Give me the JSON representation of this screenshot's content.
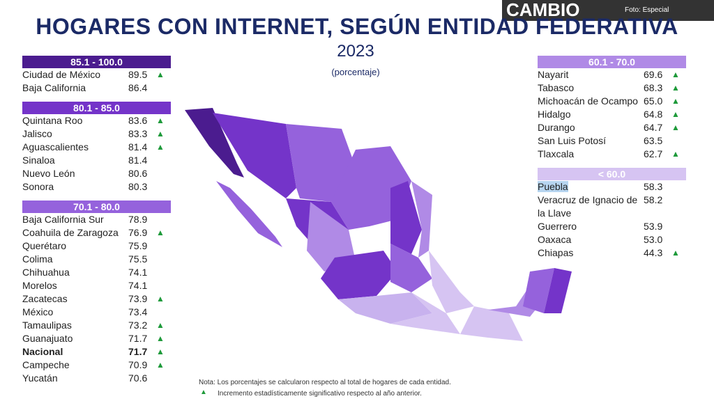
{
  "title": "HOGARES CON INTERNET, SEGÚN ENTIDAD FEDERATIVA",
  "year": "2023",
  "subtitle": "(porcentaje)",
  "watermark": {
    "brand": "CAMBIO",
    "credit": "Foto: Especial"
  },
  "columns": [
    {
      "groups": [
        {
          "header": "85.1 - 100.0",
          "color": "#4b1c8f",
          "text_color": "#ffffff",
          "rows": [
            {
              "name": "Ciudad de México",
              "value": "89.5",
              "up": true
            },
            {
              "name": "Baja California",
              "value": "86.4",
              "up": false
            }
          ]
        },
        {
          "header": "80.1 - 85.0",
          "color": "#7434c9",
          "text_color": "#ffffff",
          "rows": [
            {
              "name": "Quintana Roo",
              "value": "83.6",
              "up": true
            },
            {
              "name": "Jalisco",
              "value": "83.3",
              "up": true
            },
            {
              "name": "Aguascalientes",
              "value": "81.4",
              "up": true
            },
            {
              "name": "Sinaloa",
              "value": "81.4",
              "up": false
            },
            {
              "name": "Nuevo León",
              "value": "80.6",
              "up": false
            },
            {
              "name": "Sonora",
              "value": "80.3",
              "up": false
            }
          ]
        },
        {
          "header": "70.1 - 80.0",
          "color": "#9562dc",
          "text_color": "#ffffff",
          "rows": [
            {
              "name": "Baja California Sur",
              "value": "78.9",
              "up": false
            },
            {
              "name": "Coahuila de Zaragoza",
              "value": "76.9",
              "up": true
            },
            {
              "name": "Querétaro",
              "value": "75.9",
              "up": false
            },
            {
              "name": "Colima",
              "value": "75.5",
              "up": false
            },
            {
              "name": "Chihuahua",
              "value": "74.1",
              "up": false
            },
            {
              "name": "Morelos",
              "value": "74.1",
              "up": false
            },
            {
              "name": "Zacatecas",
              "value": "73.9",
              "up": true
            },
            {
              "name": "México",
              "value": "73.4",
              "up": false
            },
            {
              "name": "Tamaulipas",
              "value": "73.2",
              "up": true
            },
            {
              "name": "Guanajuato",
              "value": "71.7",
              "up": true
            },
            {
              "name": "Nacional",
              "value": "71.7",
              "up": true,
              "bold": true
            },
            {
              "name": "Campeche",
              "value": "70.9",
              "up": true
            },
            {
              "name": "Yucatán",
              "value": "70.6",
              "up": false
            }
          ]
        }
      ]
    },
    {
      "groups": [
        {
          "header": "60.1 - 70.0",
          "color": "#b08ae6",
          "text_color": "#ffffff",
          "rows": [
            {
              "name": "Nayarit",
              "value": "69.6",
              "up": true
            },
            {
              "name": "Tabasco",
              "value": "68.3",
              "up": true
            },
            {
              "name": "Michoacán de Ocampo",
              "value": "65.0",
              "up": true
            },
            {
              "name": "Hidalgo",
              "value": "64.8",
              "up": true
            },
            {
              "name": "Durango",
              "value": "64.7",
              "up": true
            },
            {
              "name": "San Luis Potosí",
              "value": "63.5",
              "up": false
            },
            {
              "name": "Tlaxcala",
              "value": "62.7",
              "up": true
            }
          ]
        },
        {
          "header": "< 60.0",
          "color": "#d6c4f2",
          "text_color": "#ffffff",
          "rows": [
            {
              "name": "Puebla",
              "value": "58.3",
              "up": false,
              "highlight": true
            },
            {
              "name": "Veracruz de Ignacio de la Llave",
              "value": "58.2",
              "up": false
            },
            {
              "name": "Guerrero",
              "value": "53.9",
              "up": false
            },
            {
              "name": "Oaxaca",
              "value": "53.0",
              "up": false
            },
            {
              "name": "Chiapas",
              "value": "44.3",
              "up": true
            }
          ]
        }
      ]
    }
  ],
  "note": "Nota: Los porcentajes se calcularon respecto al total de hogares de cada entidad.",
  "legend": "Incremento estadísticamente significativo respecto al año anterior."
}
